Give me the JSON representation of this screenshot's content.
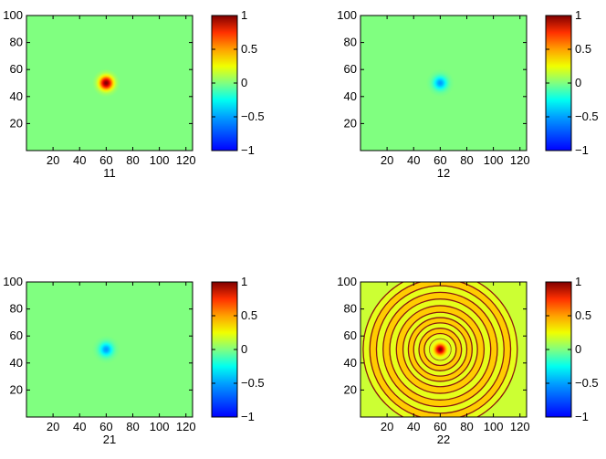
{
  "chart_data": [
    {
      "type": "heatmap",
      "title": "",
      "xlabel": "11",
      "ylabel": "",
      "xlim": [
        0,
        125
      ],
      "ylim": [
        0,
        100
      ],
      "xticks": [
        20,
        40,
        60,
        80,
        100,
        120
      ],
      "yticks": [
        20,
        40,
        60,
        80,
        100
      ],
      "center": [
        60,
        50
      ],
      "background_value": 0.0,
      "peak_value": 1.0,
      "peak_sigma": 4.5,
      "ring_contours": false,
      "colorbar": {
        "range": [
          -1,
          1
        ],
        "ticks": [
          1,
          0.5,
          0,
          -0.5,
          -1
        ]
      }
    },
    {
      "type": "heatmap",
      "title": "",
      "xlabel": "12",
      "ylabel": "",
      "xlim": [
        0,
        125
      ],
      "ylim": [
        0,
        100
      ],
      "xticks": [
        20,
        40,
        60,
        80,
        100,
        120
      ],
      "yticks": [
        20,
        40,
        60,
        80,
        100
      ],
      "center": [
        60,
        50
      ],
      "background_value": 0.0,
      "peak_value": -0.45,
      "peak_sigma": 4.5,
      "ring_contours": false,
      "colorbar": {
        "range": [
          -1,
          1
        ],
        "ticks": [
          1,
          0.5,
          0,
          -0.5,
          -1
        ]
      }
    },
    {
      "type": "heatmap",
      "title": "",
      "xlabel": "21",
      "ylabel": "",
      "xlim": [
        0,
        125
      ],
      "ylim": [
        0,
        100
      ],
      "xticks": [
        20,
        40,
        60,
        80,
        100,
        120
      ],
      "yticks": [
        20,
        40,
        60,
        80,
        100
      ],
      "center": [
        60,
        50
      ],
      "background_value": 0.0,
      "peak_value": -0.45,
      "peak_sigma": 4.5,
      "ring_contours": false,
      "colorbar": {
        "range": [
          -1,
          1
        ],
        "ticks": [
          1,
          0.5,
          0,
          -0.5,
          -1
        ]
      }
    },
    {
      "type": "heatmap",
      "title": "",
      "xlabel": "22",
      "ylabel": "",
      "xlim": [
        0,
        125
      ],
      "ylim": [
        0,
        100
      ],
      "xticks": [
        20,
        40,
        60,
        80,
        100,
        120
      ],
      "yticks": [
        20,
        40,
        60,
        80,
        100
      ],
      "center": [
        60,
        50
      ],
      "background_value": 0.15,
      "peak_value": 1.0,
      "peak_sigma": 3.5,
      "ring_contours": true,
      "ring_radii": [
        5,
        8,
        12,
        16,
        20,
        24,
        28,
        33,
        38,
        43,
        48,
        53,
        58
      ],
      "ring_color": "#8a1a10",
      "colorbar": {
        "range": [
          -1,
          1
        ],
        "ticks": [
          1,
          0.5,
          0,
          -0.5,
          -1
        ]
      }
    }
  ]
}
